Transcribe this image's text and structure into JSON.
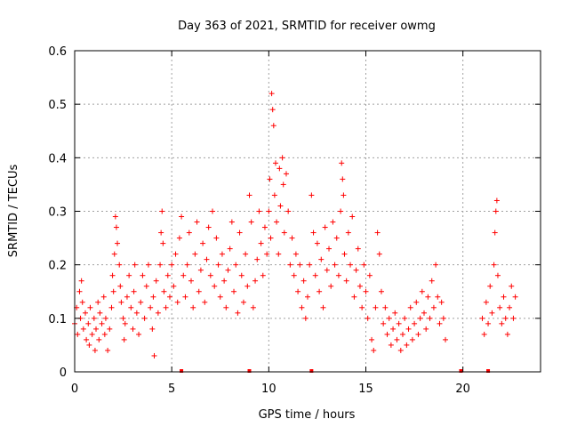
{
  "chart_data": {
    "type": "scatter",
    "title": "Day 363 of 2021, SRMTID for receiver owmg",
    "xlabel": "GPS time / hours",
    "ylabel": "SRMTID / TECUs",
    "xlim": [
      0,
      24
    ],
    "ylim": [
      0,
      0.6
    ],
    "grid": true,
    "marker": "plus",
    "color": "#ff0000",
    "x_ticks": [
      0,
      5,
      10,
      15,
      20
    ],
    "x_tick_labels": [
      "0",
      "5",
      "10",
      "15",
      "20"
    ],
    "y_ticks": [
      0,
      0.1,
      0.2,
      0.3,
      0.4,
      0.5,
      0.6
    ],
    "y_tick_labels": [
      "0",
      "0.1",
      "0.2",
      "0.3",
      "0.4",
      "0.5",
      "0.6"
    ],
    "series": [
      {
        "name": "SRMTID",
        "points": [
          [
            0.0,
            0.09
          ],
          [
            0.1,
            0.12
          ],
          [
            0.15,
            0.07
          ],
          [
            0.25,
            0.15
          ],
          [
            0.3,
            0.1
          ],
          [
            0.35,
            0.17
          ],
          [
            0.4,
            0.13
          ],
          [
            0.45,
            0.08
          ],
          [
            0.55,
            0.11
          ],
          [
            0.6,
            0.06
          ],
          [
            0.7,
            0.09
          ],
          [
            0.75,
            0.05
          ],
          [
            0.8,
            0.12
          ],
          [
            0.9,
            0.07
          ],
          [
            1.0,
            0.1
          ],
          [
            1.05,
            0.04
          ],
          [
            1.1,
            0.08
          ],
          [
            1.2,
            0.13
          ],
          [
            1.25,
            0.06
          ],
          [
            1.3,
            0.11
          ],
          [
            1.4,
            0.09
          ],
          [
            1.5,
            0.14
          ],
          [
            1.55,
            0.07
          ],
          [
            1.6,
            0.1
          ],
          [
            1.7,
            0.04
          ],
          [
            1.8,
            0.08
          ],
          [
            1.9,
            0.12
          ],
          [
            1.95,
            0.18
          ],
          [
            2.0,
            0.15
          ],
          [
            2.05,
            0.22
          ],
          [
            2.1,
            0.29
          ],
          [
            2.15,
            0.27
          ],
          [
            2.2,
            0.24
          ],
          [
            2.3,
            0.2
          ],
          [
            2.35,
            0.16
          ],
          [
            2.4,
            0.13
          ],
          [
            2.5,
            0.1
          ],
          [
            2.55,
            0.06
          ],
          [
            2.6,
            0.09
          ],
          [
            2.7,
            0.14
          ],
          [
            2.8,
            0.18
          ],
          [
            2.9,
            0.12
          ],
          [
            3.0,
            0.08
          ],
          [
            3.05,
            0.15
          ],
          [
            3.1,
            0.2
          ],
          [
            3.2,
            0.11
          ],
          [
            3.3,
            0.07
          ],
          [
            3.4,
            0.13
          ],
          [
            3.5,
            0.18
          ],
          [
            3.6,
            0.1
          ],
          [
            3.7,
            0.16
          ],
          [
            3.8,
            0.2
          ],
          [
            3.9,
            0.12
          ],
          [
            4.0,
            0.08
          ],
          [
            4.05,
            0.14
          ],
          [
            4.1,
            0.03
          ],
          [
            4.2,
            0.17
          ],
          [
            4.3,
            0.11
          ],
          [
            4.4,
            0.2
          ],
          [
            4.45,
            0.26
          ],
          [
            4.5,
            0.3
          ],
          [
            4.55,
            0.24
          ],
          [
            4.6,
            0.15
          ],
          [
            4.7,
            0.12
          ],
          [
            4.8,
            0.18
          ],
          [
            4.9,
            0.14
          ],
          [
            5.0,
            0.2
          ],
          [
            5.1,
            0.16
          ],
          [
            5.2,
            0.22
          ],
          [
            5.3,
            0.13
          ],
          [
            5.4,
            0.25
          ],
          [
            5.5,
            0.29
          ],
          [
            5.6,
            0.18
          ],
          [
            5.7,
            0.14
          ],
          [
            5.8,
            0.2
          ],
          [
            5.9,
            0.26
          ],
          [
            6.0,
            0.17
          ],
          [
            6.1,
            0.12
          ],
          [
            6.2,
            0.22
          ],
          [
            6.3,
            0.28
          ],
          [
            6.4,
            0.15
          ],
          [
            6.5,
            0.19
          ],
          [
            6.6,
            0.24
          ],
          [
            6.7,
            0.13
          ],
          [
            6.8,
            0.21
          ],
          [
            6.9,
            0.27
          ],
          [
            7.0,
            0.18
          ],
          [
            7.1,
            0.3
          ],
          [
            7.2,
            0.16
          ],
          [
            7.3,
            0.25
          ],
          [
            7.4,
            0.2
          ],
          [
            7.5,
            0.14
          ],
          [
            7.6,
            0.22
          ],
          [
            7.7,
            0.17
          ],
          [
            7.8,
            0.12
          ],
          [
            7.9,
            0.19
          ],
          [
            8.0,
            0.23
          ],
          [
            8.1,
            0.28
          ],
          [
            8.2,
            0.15
          ],
          [
            8.3,
            0.2
          ],
          [
            8.4,
            0.11
          ],
          [
            8.5,
            0.26
          ],
          [
            8.6,
            0.18
          ],
          [
            8.7,
            0.13
          ],
          [
            8.8,
            0.22
          ],
          [
            8.9,
            0.16
          ],
          [
            9.0,
            0.33
          ],
          [
            9.1,
            0.28
          ],
          [
            9.2,
            0.12
          ],
          [
            9.3,
            0.17
          ],
          [
            9.4,
            0.21
          ],
          [
            9.5,
            0.3
          ],
          [
            9.6,
            0.24
          ],
          [
            9.7,
            0.18
          ],
          [
            9.8,
            0.27
          ],
          [
            9.9,
            0.22
          ],
          [
            10.0,
            0.3
          ],
          [
            10.05,
            0.36
          ],
          [
            10.1,
            0.25
          ],
          [
            10.15,
            0.52
          ],
          [
            10.2,
            0.49
          ],
          [
            10.25,
            0.46
          ],
          [
            10.3,
            0.33
          ],
          [
            10.35,
            0.39
          ],
          [
            10.4,
            0.28
          ],
          [
            10.5,
            0.22
          ],
          [
            10.55,
            0.38
          ],
          [
            10.6,
            0.31
          ],
          [
            10.7,
            0.4
          ],
          [
            10.75,
            0.35
          ],
          [
            10.8,
            0.26
          ],
          [
            10.9,
            0.37
          ],
          [
            11.0,
            0.3
          ],
          [
            11.1,
            0.2
          ],
          [
            11.2,
            0.25
          ],
          [
            11.3,
            0.18
          ],
          [
            11.4,
            0.22
          ],
          [
            11.5,
            0.15
          ],
          [
            11.6,
            0.2
          ],
          [
            11.7,
            0.12
          ],
          [
            11.8,
            0.17
          ],
          [
            11.9,
            0.1
          ],
          [
            12.0,
            0.14
          ],
          [
            12.1,
            0.2
          ],
          [
            12.2,
            0.33
          ],
          [
            12.3,
            0.26
          ],
          [
            12.4,
            0.18
          ],
          [
            12.5,
            0.24
          ],
          [
            12.6,
            0.15
          ],
          [
            12.7,
            0.21
          ],
          [
            12.8,
            0.12
          ],
          [
            12.9,
            0.27
          ],
          [
            13.0,
            0.19
          ],
          [
            13.1,
            0.23
          ],
          [
            13.2,
            0.16
          ],
          [
            13.3,
            0.28
          ],
          [
            13.4,
            0.2
          ],
          [
            13.5,
            0.25
          ],
          [
            13.6,
            0.18
          ],
          [
            13.7,
            0.3
          ],
          [
            13.75,
            0.39
          ],
          [
            13.8,
            0.36
          ],
          [
            13.85,
            0.33
          ],
          [
            13.9,
            0.22
          ],
          [
            14.0,
            0.17
          ],
          [
            14.1,
            0.26
          ],
          [
            14.2,
            0.2
          ],
          [
            14.3,
            0.29
          ],
          [
            14.4,
            0.14
          ],
          [
            14.5,
            0.19
          ],
          [
            14.6,
            0.23
          ],
          [
            14.7,
            0.16
          ],
          [
            14.8,
            0.12
          ],
          [
            14.9,
            0.2
          ],
          [
            15.0,
            0.15
          ],
          [
            15.1,
            0.1
          ],
          [
            15.2,
            0.18
          ],
          [
            15.3,
            0.06
          ],
          [
            15.4,
            0.04
          ],
          [
            15.5,
            0.12
          ],
          [
            15.6,
            0.26
          ],
          [
            15.7,
            0.22
          ],
          [
            15.8,
            0.15
          ],
          [
            15.9,
            0.09
          ],
          [
            16.0,
            0.12
          ],
          [
            16.1,
            0.07
          ],
          [
            16.2,
            0.1
          ],
          [
            16.3,
            0.05
          ],
          [
            16.4,
            0.08
          ],
          [
            16.5,
            0.11
          ],
          [
            16.6,
            0.06
          ],
          [
            16.7,
            0.09
          ],
          [
            16.8,
            0.04
          ],
          [
            16.9,
            0.07
          ],
          [
            17.0,
            0.1
          ],
          [
            17.1,
            0.05
          ],
          [
            17.2,
            0.08
          ],
          [
            17.3,
            0.12
          ],
          [
            17.4,
            0.06
          ],
          [
            17.5,
            0.09
          ],
          [
            17.6,
            0.13
          ],
          [
            17.7,
            0.07
          ],
          [
            17.8,
            0.1
          ],
          [
            17.9,
            0.15
          ],
          [
            18.0,
            0.11
          ],
          [
            18.1,
            0.08
          ],
          [
            18.2,
            0.14
          ],
          [
            18.3,
            0.1
          ],
          [
            18.4,
            0.17
          ],
          [
            18.5,
            0.12
          ],
          [
            18.6,
            0.2
          ],
          [
            18.7,
            0.14
          ],
          [
            18.8,
            0.09
          ],
          [
            18.9,
            0.13
          ],
          [
            19.0,
            0.1
          ],
          [
            19.1,
            0.06
          ],
          [
            21.0,
            0.1
          ],
          [
            21.1,
            0.07
          ],
          [
            21.2,
            0.13
          ],
          [
            21.3,
            0.09
          ],
          [
            21.4,
            0.16
          ],
          [
            21.5,
            0.11
          ],
          [
            21.6,
            0.2
          ],
          [
            21.65,
            0.26
          ],
          [
            21.7,
            0.3
          ],
          [
            21.75,
            0.32
          ],
          [
            21.8,
            0.18
          ],
          [
            21.9,
            0.12
          ],
          [
            22.0,
            0.09
          ],
          [
            22.1,
            0.14
          ],
          [
            22.2,
            0.1
          ],
          [
            22.3,
            0.07
          ],
          [
            22.4,
            0.12
          ],
          [
            22.5,
            0.16
          ],
          [
            22.6,
            0.1
          ],
          [
            22.7,
            0.14
          ]
        ]
      }
    ],
    "gap_markers_x": [
      5.5,
      9.0,
      12.2,
      19.9,
      21.3
    ]
  }
}
